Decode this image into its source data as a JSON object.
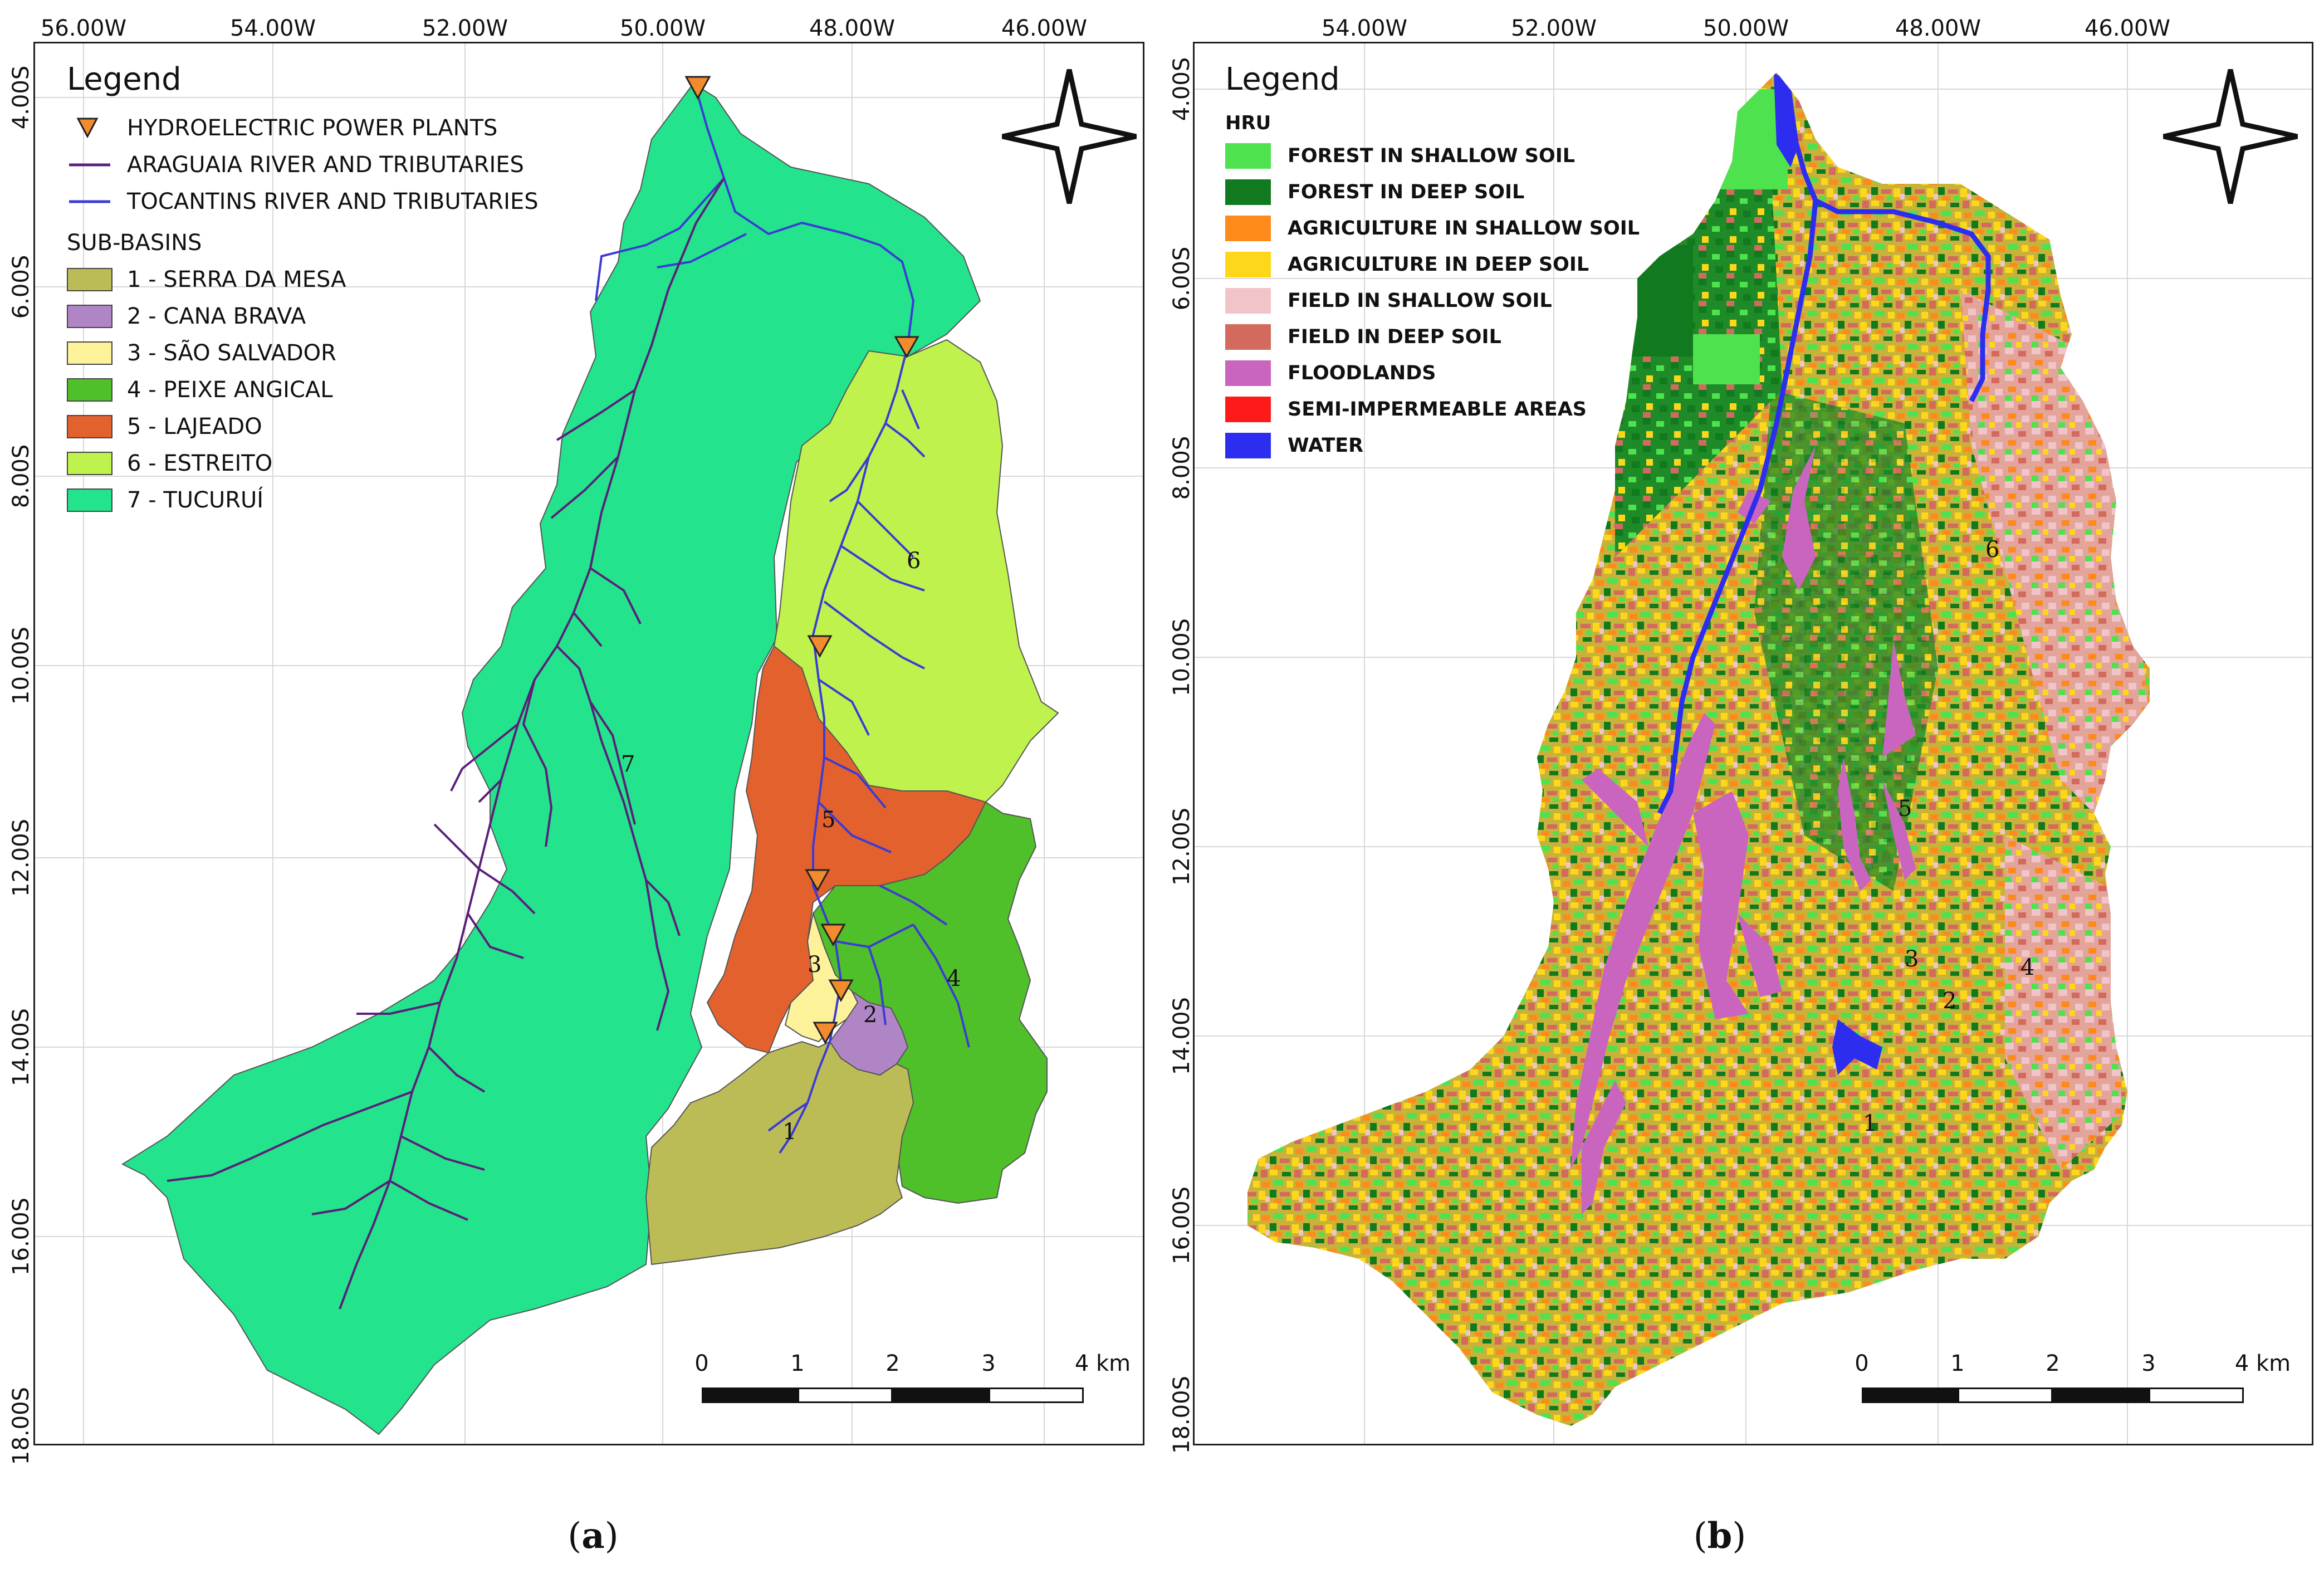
{
  "panel_a": {
    "lon_labels": [
      "56.00W",
      "54.00W",
      "52.00W",
      "50.00W",
      "48.00W",
      "46.00W"
    ],
    "lat_labels": [
      "4.00S",
      "6.00S",
      "8.00S",
      "10.00S",
      "12.00S",
      "14.00S",
      "16.00S",
      "18.00S"
    ],
    "legend": {
      "title": "Legend",
      "items": [
        {
          "label": "HYDROELECTRIC POWER PLANTS",
          "symbol": "triangle-icon",
          "color": "#f28a2e"
        },
        {
          "label": "ARAGUAIA RIVER AND TRIBUTARIES",
          "symbol": "line",
          "color": "#5a1f7a"
        },
        {
          "label": "TOCANTINS RIVER AND TRIBUTARIES",
          "symbol": "line",
          "color": "#3b3bd6"
        }
      ],
      "subbasins_title": "SUB-BASINS",
      "subbasins": [
        {
          "label": "1 - SERRA DA MESA",
          "color": "#bcbc57"
        },
        {
          "label": "2 - CANA BRAVA",
          "color": "#b085c6"
        },
        {
          "label": "3 - SÃO SALVADOR",
          "color": "#fdf19a"
        },
        {
          "label": "4 - PEIXE ANGICAL",
          "color": "#4fbf2a"
        },
        {
          "label": "5 - LAJEADO",
          "color": "#e3612c"
        },
        {
          "label": "6 - ESTREITO",
          "color": "#bff24c"
        },
        {
          "label": "7 - TUCURUÍ",
          "color": "#23e38c"
        }
      ]
    },
    "basin_numbers": [
      "1",
      "2",
      "3",
      "4",
      "5",
      "6",
      "7"
    ],
    "scale_labels": [
      "0",
      "1",
      "2",
      "3",
      "4 km"
    ],
    "caption_letter": "a"
  },
  "panel_b": {
    "lon_labels": [
      "54.00W",
      "52.00W",
      "50.00W",
      "48.00W",
      "46.00W"
    ],
    "lat_labels": [
      "4.00S",
      "6.00S",
      "8.00S",
      "10.00S",
      "12.00S",
      "14.00S",
      "16.00S",
      "18.00S"
    ],
    "legend": {
      "title": "Legend",
      "group_title": "HRU",
      "items": [
        {
          "label": "FOREST IN SHALLOW SOIL",
          "color": "#4fe24f"
        },
        {
          "label": "FOREST IN DEEP SOIL",
          "color": "#117a1e"
        },
        {
          "label": "AGRICULTURE IN SHALLOW SOIL",
          "color": "#ff8a1c"
        },
        {
          "label": "AGRICULTURE IN DEEP SOIL",
          "color": "#ffd71a"
        },
        {
          "label": "FIELD IN SHALLOW SOIL",
          "color": "#f0c4c8"
        },
        {
          "label": "FIELD IN DEEP SOIL",
          "color": "#d46a5e"
        },
        {
          "label": "FLOODLANDS",
          "color": "#c965bf"
        },
        {
          "label": "SEMI-IMPERMEABLE AREAS",
          "color": "#ff1a1a"
        },
        {
          "label": "WATER",
          "color": "#2d2df0"
        }
      ]
    },
    "basin_numbers": [
      "1",
      "2",
      "3",
      "4",
      "5",
      "6"
    ],
    "scale_labels": [
      "0",
      "1",
      "2",
      "3",
      "4 km"
    ],
    "caption_letter": "b"
  }
}
